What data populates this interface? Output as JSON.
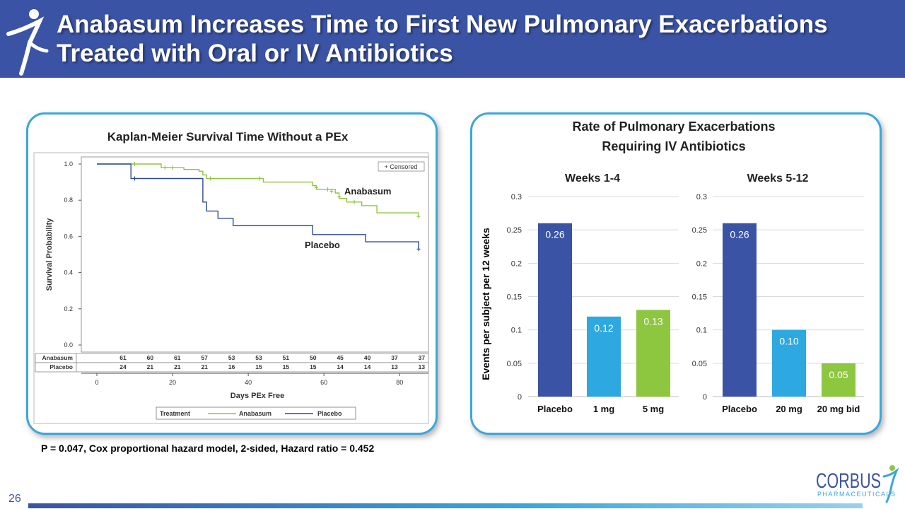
{
  "header": {
    "title_line1": "Anabasum Increases Time to First New Pulmonary Exacerbations",
    "title_line2": "Treated with Oral or IV Antibiotics"
  },
  "colors": {
    "header_bg": "#3a53a4",
    "panel_border": "#3aa7dc",
    "anabasum": "#8dc63f",
    "placebo": "#2e4a9a",
    "bar_placebo": "#3a53a4",
    "bar_low": "#2ea8e0",
    "bar_high": "#8dc63f"
  },
  "footnote": "P = 0.047, Cox proportional hazard model, 2-sided, Hazard ratio = 0.452",
  "page_number": "26",
  "logo": {
    "name": "CORBUS",
    "sub": "PHARMACEUTICALS"
  },
  "chart_data": [
    {
      "type": "line",
      "title": "Kaplan-Meier Survival Time Without a PEx",
      "xlabel": "Days PEx Free",
      "ylabel": "Survival Probability",
      "xlim": [
        0,
        85
      ],
      "ylim": [
        0,
        1.0
      ],
      "xticks": [
        "0",
        "20",
        "40",
        "60",
        "80"
      ],
      "yticks": [
        "0.0",
        "0.2",
        "0.4",
        "0.6",
        "0.8",
        "1.0"
      ],
      "censored_legend": "+ Censored",
      "series": [
        {
          "name": "Anabasum",
          "color": "#8dc63f",
          "steps": [
            [
              0,
              1.0
            ],
            [
              10,
              1.0
            ],
            [
              17,
              1.0
            ],
            [
              17,
              0.98
            ],
            [
              23,
              0.98
            ],
            [
              23,
              0.97
            ],
            [
              27,
              0.97
            ],
            [
              27,
              0.96
            ],
            [
              28,
              0.96
            ],
            [
              28,
              0.94
            ],
            [
              29,
              0.94
            ],
            [
              29,
              0.92
            ],
            [
              44,
              0.92
            ],
            [
              44,
              0.9
            ],
            [
              57,
              0.9
            ],
            [
              57,
              0.88
            ],
            [
              58,
              0.88
            ],
            [
              58,
              0.86
            ],
            [
              63,
              0.86
            ],
            [
              63,
              0.84
            ],
            [
              64,
              0.84
            ],
            [
              64,
              0.81
            ],
            [
              66,
              0.81
            ],
            [
              66,
              0.79
            ],
            [
              70,
              0.79
            ],
            [
              70,
              0.77
            ],
            [
              74,
              0.77
            ],
            [
              74,
              0.73
            ],
            [
              85,
              0.73
            ],
            [
              85,
              0.71
            ]
          ],
          "censors": [
            [
              10,
              1.0
            ],
            [
              18,
              0.98
            ],
            [
              20,
              0.98
            ],
            [
              30,
              0.92
            ],
            [
              43,
              0.92
            ],
            [
              58,
              0.87
            ],
            [
              61,
              0.86
            ],
            [
              62,
              0.85
            ],
            [
              64,
              0.82
            ],
            [
              68,
              0.79
            ],
            [
              85,
              0.71
            ]
          ]
        },
        {
          "name": "Placebo",
          "color": "#2e4a9a",
          "steps": [
            [
              0,
              1.0
            ],
            [
              9,
              1.0
            ],
            [
              9,
              0.92
            ],
            [
              28,
              0.92
            ],
            [
              28,
              0.79
            ],
            [
              29,
              0.79
            ],
            [
              29,
              0.74
            ],
            [
              32,
              0.74
            ],
            [
              32,
              0.7
            ],
            [
              36,
              0.7
            ],
            [
              36,
              0.66
            ],
            [
              57,
              0.66
            ],
            [
              57,
              0.61
            ],
            [
              71,
              0.61
            ],
            [
              71,
              0.57
            ],
            [
              85,
              0.57
            ],
            [
              85,
              0.53
            ]
          ],
          "censors": [
            [
              10,
              0.92
            ],
            [
              85,
              0.53
            ]
          ]
        }
      ],
      "at_risk": {
        "rows": [
          {
            "label": "Anabasum",
            "values": [
              "61",
              "60",
              "61",
              "57",
              "53",
              "53",
              "51",
              "50",
              "45",
              "40",
              "37",
              "37"
            ]
          },
          {
            "label": "Placebo",
            "values": [
              "24",
              "21",
              "21",
              "21",
              "16",
              "15",
              "15",
              "15",
              "14",
              "14",
              "13",
              "13"
            ]
          }
        ]
      },
      "legend": {
        "header": "Treatment",
        "items": [
          "Anabasum",
          "Placebo"
        ]
      }
    },
    {
      "type": "bar",
      "title": "Rate of Pulmonary Exacerbations",
      "subtitle": "Requiring IV Antibiotics",
      "ylabel": "Events per subject per 12 weeks",
      "ylim": [
        0,
        0.3
      ],
      "yticks": [
        "0",
        "0.05",
        "0.1",
        "0.15",
        "0.2",
        "0.25",
        "0.3"
      ],
      "groups": [
        {
          "title": "Weeks 1-4",
          "categories": [
            "Placebo",
            "1 mg",
            "5 mg"
          ],
          "values": [
            0.26,
            0.12,
            0.13
          ],
          "labels": [
            "0.26",
            "0.12",
            "0.13"
          ]
        },
        {
          "title": "Weeks 5-12",
          "categories": [
            "Placebo",
            "20 mg",
            "20 mg bid"
          ],
          "values": [
            0.26,
            0.1,
            0.05
          ],
          "labels": [
            "0.26",
            "0.10",
            "0.05"
          ]
        }
      ]
    }
  ]
}
